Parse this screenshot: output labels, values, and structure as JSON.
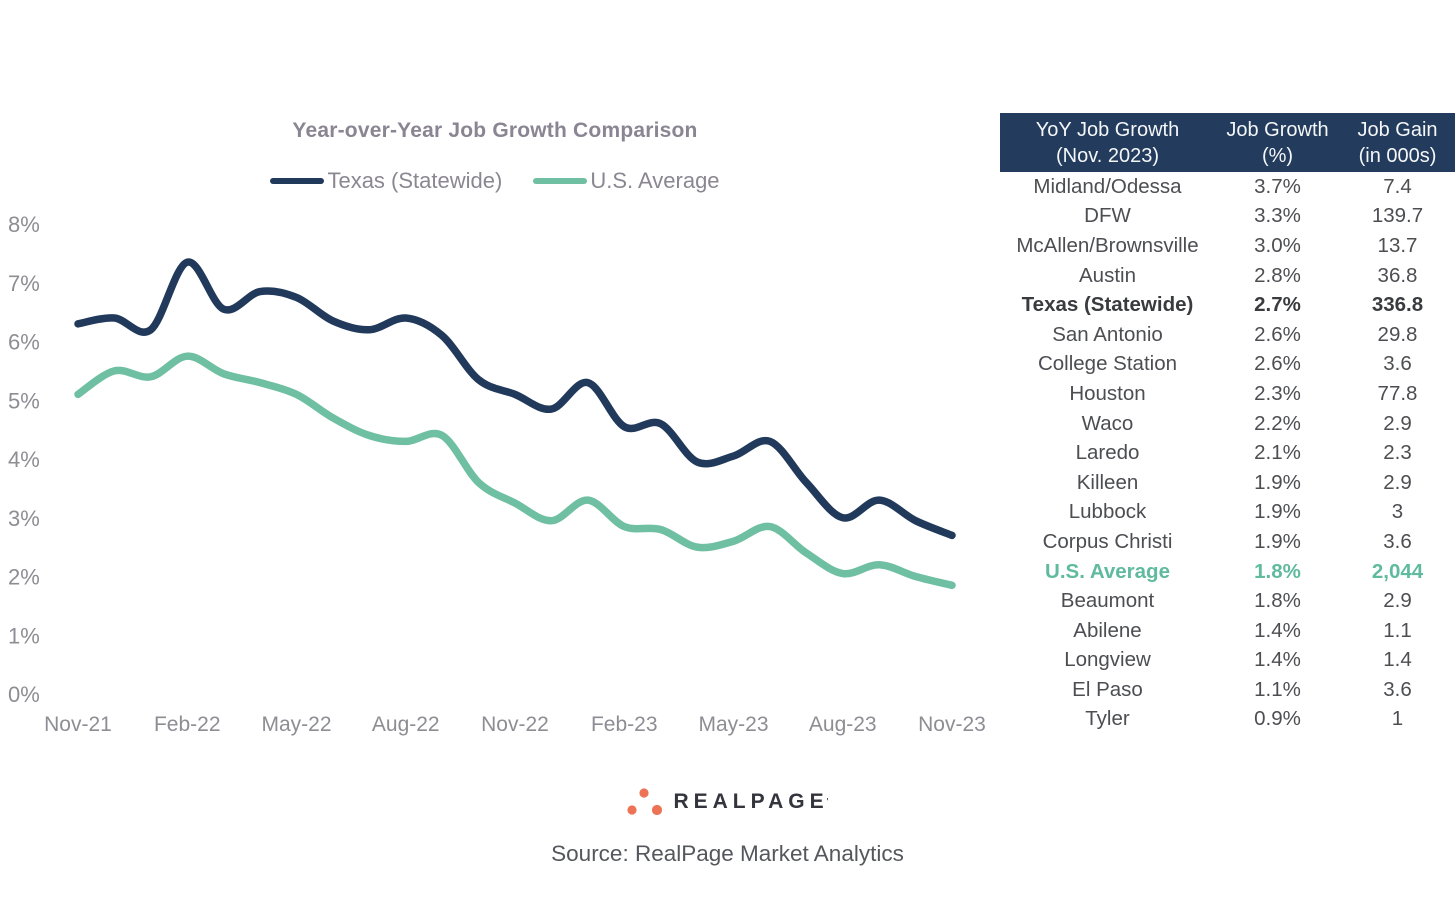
{
  "chart": {
    "title": "Year-over-Year Job Growth Comparison",
    "legend": {
      "texas": "Texas (Statewide)",
      "us": "U.S. Average"
    },
    "colors": {
      "texas": "#21395B",
      "us": "#6FBFA3",
      "axis_text": "#8D8D94"
    }
  },
  "chart_data": {
    "type": "line",
    "x": [
      "Nov-21",
      "Dec-21",
      "Jan-22",
      "Feb-22",
      "Mar-22",
      "Apr-22",
      "May-22",
      "Jun-22",
      "Jul-22",
      "Aug-22",
      "Sep-22",
      "Oct-22",
      "Nov-22",
      "Dec-22",
      "Jan-23",
      "Feb-23",
      "Mar-23",
      "Apr-23",
      "May-23",
      "Jun-23",
      "Jul-23",
      "Aug-23",
      "Sep-23",
      "Oct-23",
      "Nov-23"
    ],
    "x_tick_labels": [
      "Nov-21",
      "Feb-22",
      "May-22",
      "Aug-22",
      "Nov-22",
      "Feb-23",
      "May-23",
      "Aug-23",
      "Nov-23"
    ],
    "series": [
      {
        "name": "Texas (Statewide)",
        "color": "#21395B",
        "values": [
          6.3,
          6.4,
          6.2,
          7.35,
          6.55,
          6.85,
          6.75,
          6.35,
          6.2,
          6.4,
          6.1,
          5.35,
          5.1,
          4.85,
          5.3,
          4.55,
          4.6,
          3.95,
          4.05,
          4.3,
          3.6,
          3.0,
          3.3,
          2.95,
          2.7
        ]
      },
      {
        "name": "U.S. Average",
        "color": "#6FBFA3",
        "values": [
          5.1,
          5.5,
          5.4,
          5.75,
          5.45,
          5.3,
          5.1,
          4.7,
          4.4,
          4.3,
          4.4,
          3.6,
          3.25,
          2.95,
          3.3,
          2.85,
          2.8,
          2.5,
          2.6,
          2.85,
          2.4,
          2.05,
          2.2,
          2.0,
          1.85
        ]
      }
    ],
    "title": "Year-over-Year Job Growth Comparison",
    "xlabel": "",
    "ylabel": "",
    "ylim": [
      0,
      8
    ],
    "y_ticks": [
      "0%",
      "1%",
      "2%",
      "3%",
      "4%",
      "5%",
      "6%",
      "7%",
      "8%"
    ],
    "grid": false,
    "legend_position": "top"
  },
  "table": {
    "header_bg": "#233B5C",
    "columns": [
      {
        "l1": "YoY Job Growth",
        "l2": "(Nov. 2023)"
      },
      {
        "l1": "Job Growth",
        "l2": "(%)"
      },
      {
        "l1": "Job Gain",
        "l2": "(in 000s)"
      }
    ],
    "rows": [
      {
        "market": "Midland/Odessa",
        "growth": "3.7%",
        "gain": "7.4",
        "style": ""
      },
      {
        "market": "DFW",
        "growth": "3.3%",
        "gain": "139.7",
        "style": ""
      },
      {
        "market": "McAllen/Brownsville",
        "growth": "3.0%",
        "gain": "13.7",
        "style": ""
      },
      {
        "market": "Austin",
        "growth": "2.8%",
        "gain": "36.8",
        "style": ""
      },
      {
        "market": "Texas (Statewide)",
        "growth": "2.7%",
        "gain": "336.8",
        "style": "bold"
      },
      {
        "market": "San Antonio",
        "growth": "2.6%",
        "gain": "29.8",
        "style": ""
      },
      {
        "market": "College Station",
        "growth": "2.6%",
        "gain": "3.6",
        "style": ""
      },
      {
        "market": "Houston",
        "growth": "2.3%",
        "gain": "77.8",
        "style": ""
      },
      {
        "market": "Waco",
        "growth": "2.2%",
        "gain": "2.9",
        "style": ""
      },
      {
        "market": "Laredo",
        "growth": "2.1%",
        "gain": "2.3",
        "style": ""
      },
      {
        "market": "Killeen",
        "growth": "1.9%",
        "gain": "2.9",
        "style": ""
      },
      {
        "market": "Lubbock",
        "growth": "1.9%",
        "gain": "3",
        "style": ""
      },
      {
        "market": "Corpus Christi",
        "growth": "1.9%",
        "gain": "3.6",
        "style": ""
      },
      {
        "market": "U.S. Average",
        "growth": "1.8%",
        "gain": "2,044",
        "style": "teal"
      },
      {
        "market": "Beaumont",
        "growth": "1.8%",
        "gain": "2.9",
        "style": ""
      },
      {
        "market": "Abilene",
        "growth": "1.4%",
        "gain": "1.1",
        "style": ""
      },
      {
        "market": "Longview",
        "growth": "1.4%",
        "gain": "1.4",
        "style": ""
      },
      {
        "market": "El Paso",
        "growth": "1.1%",
        "gain": "3.6",
        "style": ""
      },
      {
        "market": "Tyler",
        "growth": "0.9%",
        "gain": "1",
        "style": ""
      }
    ]
  },
  "footer": {
    "logo_text": "REALPAGE",
    "logo_mark": "'",
    "logo_dot_color": "#EC7355",
    "source": "Source: RealPage Market Analytics"
  }
}
